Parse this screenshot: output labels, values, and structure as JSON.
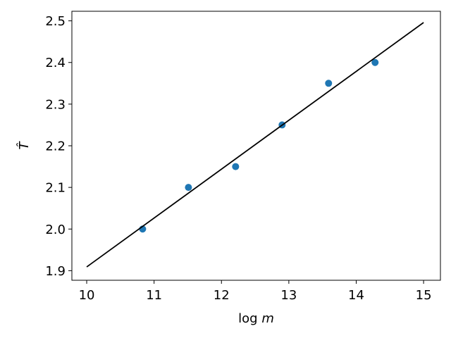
{
  "chart_data": {
    "type": "scatter",
    "title": "",
    "xlabel": "log m",
    "ylabel": "T̂",
    "xlim": [
      9.78,
      15.25
    ],
    "ylim": [
      1.877,
      2.523
    ],
    "xticks": [
      10,
      11,
      12,
      13,
      14,
      15
    ],
    "yticks": [
      1.9,
      2.0,
      2.1,
      2.2,
      2.3,
      2.4,
      2.5
    ],
    "xtick_labels": [
      "10",
      "11",
      "12",
      "13",
      "14",
      "15"
    ],
    "ytick_labels": [
      "1.9",
      "2.0",
      "2.1",
      "2.2",
      "2.3",
      "2.4",
      "2.5"
    ],
    "grid": false,
    "series": [
      {
        "kind": "scatter",
        "color": "#1f77b4",
        "x": [
          10.83,
          11.51,
          12.21,
          12.9,
          13.59,
          14.28
        ],
        "y": [
          2.0,
          2.1,
          2.15,
          2.25,
          2.35,
          2.4
        ]
      },
      {
        "kind": "line",
        "color": "#000000",
        "x": [
          10.0,
          15.0
        ],
        "y": [
          1.909,
          2.496
        ]
      }
    ]
  }
}
